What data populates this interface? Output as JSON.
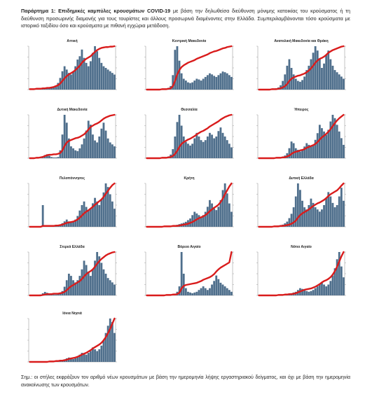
{
  "header": {
    "label": "Παράρτημα 1:",
    "bold_text": "Επιδημικές καμπύλες κρουσμάτων COVID-19",
    "text": "με βάση την δηλωθείσα διεύθυνση μόνιμης κατοικίας του κρούσματος ή τη διεύθυνση προσωρινής διαμονής για τους τουρίστες και άλλους προσωρινά διαμένοντες στην Ελλάδα. Συμπεριλαμβάνονται τόσο κρούσματα με ιστορικό ταξιδίου όσο και κρούσματα με πιθανή εγχώρια μετάδοση."
  },
  "footer": {
    "text": "Σημ.: οι στήλες εκφράζουν τον αριθμό νέων κρουσμάτων με βάση την ημερομηνία λήψης εργαστηριακού δείγματος, και όχι με βάση την ημερομηνία ανακοίνωσης των κρουσμάτων."
  },
  "colors": {
    "bars": "#4f6f8c",
    "line": "#d91c1c",
    "axis": "#888888"
  },
  "chart_data": [
    {
      "type": "bar",
      "title": "Αττική",
      "series": [
        {
          "values": [
            1,
            1,
            1,
            1,
            2,
            2,
            3,
            3,
            4,
            5,
            6,
            8,
            12,
            20,
            35,
            55,
            70,
            60,
            50,
            45,
            55,
            70,
            90,
            100,
            120,
            95,
            80,
            70,
            85,
            110,
            130,
            115,
            95,
            80,
            70,
            65,
            60,
            55,
            50,
            45
          ]
        },
        {
          "values": [
            1,
            1,
            1,
            2,
            2,
            2,
            3,
            3,
            4,
            4,
            5,
            6,
            8,
            10,
            14,
            20,
            26,
            31,
            35,
            38,
            41,
            45,
            50,
            55,
            62,
            67,
            71,
            74,
            77,
            82,
            87,
            91,
            94,
            96,
            97,
            98,
            98,
            99,
            99,
            100
          ]
        }
      ]
    },
    {
      "type": "bar",
      "title": "Κεντρική Μακεδονία",
      "series": [
        {
          "values": [
            0,
            0,
            0,
            0,
            0,
            0,
            1,
            1,
            2,
            3,
            5,
            10,
            40,
            110,
            120,
            80,
            45,
            30,
            25,
            20,
            18,
            20,
            25,
            30,
            28,
            25,
            30,
            35,
            40,
            45,
            42,
            38,
            35,
            40,
            45,
            50,
            48,
            45,
            40,
            35
          ]
        },
        {
          "values": [
            0,
            0,
            0,
            0,
            0,
            0,
            0,
            1,
            1,
            1,
            2,
            3,
            8,
            20,
            35,
            45,
            52,
            56,
            59,
            62,
            64,
            66,
            68,
            71,
            73,
            75,
            77,
            79,
            81,
            84,
            86,
            88,
            89,
            91,
            93,
            95,
            96,
            98,
            99,
            100
          ]
        }
      ]
    },
    {
      "type": "bar",
      "title": "Ανατολική Μακεδονία και Θράκη",
      "series": [
        {
          "values": [
            0,
            0,
            0,
            0,
            0,
            1,
            1,
            2,
            3,
            5,
            10,
            20,
            35,
            55,
            70,
            50,
            35,
            25,
            20,
            18,
            22,
            30,
            45,
            55,
            70,
            85,
            100,
            90,
            70,
            50,
            60,
            80,
            90,
            70,
            55,
            45,
            40,
            35,
            30,
            25
          ]
        },
        {
          "values": [
            0,
            0,
            0,
            0,
            0,
            0,
            1,
            1,
            1,
            2,
            3,
            5,
            8,
            13,
            20,
            25,
            28,
            30,
            32,
            33,
            35,
            37,
            40,
            44,
            49,
            55,
            62,
            67,
            71,
            73,
            76,
            80,
            85,
            88,
            91,
            93,
            95,
            97,
            99,
            100
          ]
        }
      ]
    },
    {
      "type": "bar",
      "title": "Δυτική Μακεδονία",
      "series": [
        {
          "values": [
            0,
            0,
            1,
            1,
            2,
            3,
            5,
            8,
            10,
            6,
            3,
            2,
            2,
            3,
            20,
            60,
            110,
            90,
            50,
            30,
            25,
            20,
            18,
            25,
            35,
            50,
            70,
            95,
            85,
            60,
            45,
            40,
            55,
            75,
            90,
            70,
            50,
            40,
            35,
            30
          ]
        },
        {
          "values": [
            0,
            0,
            0,
            1,
            1,
            2,
            3,
            5,
            7,
            8,
            8,
            9,
            9,
            10,
            12,
            18,
            28,
            36,
            40,
            42,
            44,
            46,
            47,
            49,
            52,
            55,
            60,
            66,
            72,
            75,
            78,
            80,
            83,
            87,
            91,
            94,
            96,
            98,
            99,
            100
          ]
        }
      ]
    },
    {
      "type": "bar",
      "title": "Θεσσαλία",
      "series": [
        {
          "values": [
            0,
            0,
            0,
            0,
            0,
            0,
            1,
            1,
            2,
            3,
            5,
            10,
            25,
            60,
            100,
            120,
            90,
            60,
            45,
            40,
            35,
            40,
            55,
            70,
            60,
            50,
            45,
            50,
            60,
            70,
            65,
            55,
            60,
            75,
            85,
            70,
            60,
            50,
            40,
            30
          ]
        },
        {
          "values": [
            0,
            0,
            0,
            0,
            0,
            0,
            0,
            1,
            1,
            1,
            2,
            3,
            5,
            10,
            17,
            26,
            33,
            37,
            40,
            43,
            45,
            48,
            51,
            55,
            58,
            61,
            63,
            66,
            69,
            73,
            76,
            79,
            82,
            85,
            89,
            92,
            95,
            97,
            99,
            100
          ]
        }
      ]
    },
    {
      "type": "bar",
      "title": "Ήπειρος",
      "series": [
        {
          "values": [
            0,
            0,
            0,
            0,
            0,
            0,
            1,
            1,
            1,
            2,
            3,
            5,
            8,
            15,
            30,
            50,
            45,
            30,
            25,
            20,
            25,
            35,
            45,
            40,
            35,
            40,
            55,
            75,
            100,
            90,
            80,
            70,
            85,
            110,
            130,
            120,
            100,
            80,
            60,
            40
          ]
        },
        {
          "values": [
            0,
            0,
            0,
            0,
            0,
            0,
            0,
            0,
            1,
            1,
            1,
            2,
            2,
            4,
            6,
            10,
            13,
            15,
            16,
            18,
            19,
            21,
            24,
            26,
            28,
            30,
            33,
            37,
            43,
            48,
            52,
            56,
            61,
            67,
            74,
            81,
            87,
            92,
            96,
            100
          ]
        }
      ]
    },
    {
      "type": "bar",
      "title": "Πελοπόννησος",
      "series": [
        {
          "values": [
            0,
            0,
            0,
            0,
            0,
            0,
            60,
            0,
            1,
            1,
            2,
            2,
            3,
            4,
            6,
            10,
            15,
            20,
            15,
            12,
            15,
            20,
            30,
            45,
            60,
            70,
            55,
            45,
            50,
            65,
            80,
            70,
            60,
            75,
            95,
            120,
            110,
            90,
            70,
            50
          ]
        },
        {
          "values": [
            0,
            0,
            0,
            0,
            0,
            0,
            2,
            2,
            2,
            2,
            2,
            2,
            3,
            3,
            4,
            5,
            7,
            9,
            10,
            11,
            12,
            14,
            17,
            21,
            26,
            31,
            35,
            38,
            42,
            46,
            51,
            55,
            59,
            63,
            69,
            76,
            83,
            90,
            96,
            100
          ]
        }
      ]
    },
    {
      "type": "bar",
      "title": "Κρήτη",
      "series": [
        {
          "values": [
            0,
            0,
            0,
            0,
            0,
            0,
            1,
            1,
            1,
            2,
            2,
            3,
            4,
            5,
            6,
            8,
            10,
            12,
            15,
            20,
            25,
            35,
            45,
            40,
            35,
            30,
            35,
            45,
            60,
            80,
            70,
            55,
            50,
            60,
            80,
            110,
            130,
            100,
            70,
            45
          ]
        },
        {
          "values": [
            0,
            0,
            0,
            0,
            0,
            0,
            0,
            0,
            1,
            1,
            1,
            1,
            2,
            2,
            2,
            3,
            4,
            5,
            6,
            7,
            9,
            11,
            14,
            17,
            20,
            22,
            24,
            27,
            31,
            36,
            40,
            44,
            47,
            51,
            57,
            65,
            75,
            84,
            93,
            100
          ]
        }
      ]
    },
    {
      "type": "bar",
      "title": "Δυτική Ελλάδα",
      "series": [
        {
          "values": [
            0,
            0,
            0,
            0,
            0,
            0,
            1,
            1,
            2,
            3,
            4,
            5,
            8,
            12,
            20,
            30,
            45,
            70,
            100,
            85,
            60,
            45,
            40,
            50,
            65,
            55,
            45,
            40,
            35,
            40,
            50,
            65,
            80,
            70,
            55,
            45,
            50,
            70,
            90,
            60
          ]
        },
        {
          "values": [
            0,
            0,
            0,
            0,
            0,
            0,
            0,
            1,
            1,
            1,
            2,
            2,
            3,
            4,
            5,
            7,
            10,
            14,
            21,
            27,
            31,
            34,
            37,
            40,
            44,
            48,
            51,
            54,
            56,
            59,
            62,
            66,
            71,
            75,
            78,
            81,
            84,
            89,
            95,
            100
          ]
        }
      ]
    },
    {
      "type": "bar",
      "title": "Στερεά Ελλάδα",
      "series": [
        {
          "values": [
            0,
            0,
            0,
            0,
            0,
            2,
            5,
            8,
            6,
            4,
            3,
            2,
            2,
            3,
            5,
            10,
            20,
            35,
            50,
            45,
            35,
            30,
            35,
            45,
            60,
            80,
            70,
            55,
            45,
            60,
            80,
            100,
            90,
            75,
            60,
            50,
            40,
            35,
            30,
            25
          ]
        },
        {
          "values": [
            0,
            0,
            0,
            0,
            0,
            0,
            1,
            2,
            3,
            3,
            3,
            4,
            4,
            4,
            5,
            6,
            8,
            12,
            17,
            21,
            24,
            27,
            30,
            33,
            38,
            44,
            49,
            53,
            56,
            60,
            66,
            73,
            79,
            84,
            88,
            92,
            95,
            97,
            99,
            100
          ]
        }
      ]
    },
    {
      "type": "bar",
      "title": "Βόρειο Αιγαίο",
      "series": [
        {
          "values": [
            0,
            0,
            0,
            0,
            0,
            0,
            0,
            1,
            1,
            1,
            1,
            2,
            3,
            5,
            10,
            25,
            120,
            60,
            20,
            10,
            8,
            6,
            8,
            10,
            15,
            20,
            25,
            20,
            15,
            20,
            30,
            40,
            55,
            45,
            35,
            30,
            25,
            20,
            15,
            10
          ]
        },
        {
          "values": [
            0,
            0,
            0,
            0,
            0,
            0,
            0,
            0,
            0,
            1,
            1,
            1,
            2,
            2,
            3,
            6,
            16,
            22,
            24,
            25,
            26,
            27,
            28,
            29,
            31,
            33,
            36,
            38,
            40,
            42,
            45,
            49,
            55,
            60,
            64,
            67,
            70,
            73,
            76,
            100
          ]
        }
      ]
    },
    {
      "type": "bar",
      "title": "Νότιο Αιγαίο",
      "series": [
        {
          "values": [
            0,
            0,
            0,
            0,
            0,
            0,
            0,
            1,
            1,
            1,
            2,
            2,
            3,
            4,
            5,
            6,
            8,
            10,
            15,
            20,
            18,
            15,
            12,
            10,
            12,
            15,
            20,
            25,
            30,
            35,
            30,
            25,
            30,
            40,
            55,
            75,
            100,
            120,
            80,
            50
          ]
        },
        {
          "values": [
            0,
            0,
            0,
            0,
            0,
            0,
            0,
            0,
            0,
            1,
            1,
            1,
            2,
            2,
            3,
            3,
            4,
            5,
            7,
            9,
            11,
            13,
            14,
            15,
            16,
            18,
            20,
            23,
            26,
            30,
            33,
            35,
            38,
            42,
            48,
            56,
            66,
            78,
            90,
            100
          ]
        }
      ]
    },
    {
      "type": "bar",
      "title": "Ιόνια Νησιά",
      "series": [
        {
          "values": [
            0,
            0,
            0,
            0,
            0,
            0,
            0,
            1,
            1,
            1,
            2,
            2,
            3,
            3,
            4,
            5,
            7,
            10,
            12,
            10,
            8,
            10,
            15,
            20,
            25,
            22,
            20,
            25,
            30,
            40,
            35,
            30,
            35,
            45,
            60,
            80,
            100,
            120,
            110,
            80
          ]
        },
        {
          "values": [
            0,
            0,
            0,
            0,
            0,
            0,
            0,
            0,
            0,
            1,
            1,
            1,
            2,
            2,
            3,
            3,
            4,
            5,
            7,
            8,
            9,
            10,
            12,
            14,
            17,
            19,
            21,
            24,
            27,
            31,
            34,
            37,
            40,
            44,
            50,
            57,
            66,
            76,
            88,
            100
          ]
        }
      ]
    }
  ]
}
